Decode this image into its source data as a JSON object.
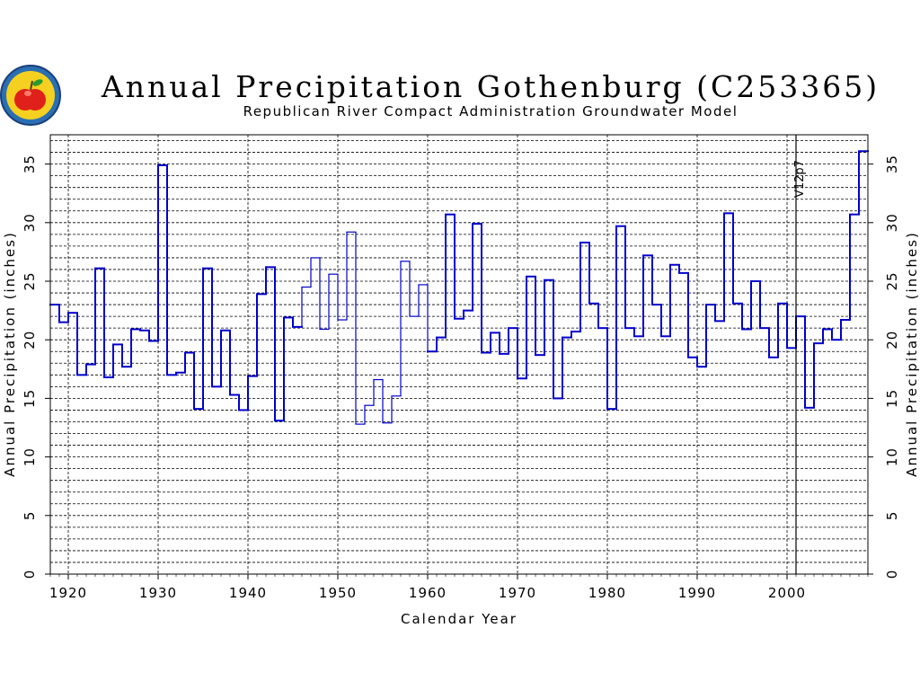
{
  "chart_data": {
    "type": "line",
    "step": true,
    "title": "Annual Precipitation Gothenburg (C253365)",
    "subtitle": "Republican River Compact Administration Groundwater Model",
    "xlabel": "Calendar Year",
    "ylabel": "Annual Precipitation (inches)",
    "ylabel_right": "Annual Precipitation (inches)",
    "xlim": [
      1918,
      2009
    ],
    "ylim": [
      0,
      37.5
    ],
    "x_ticks": [
      1920,
      1930,
      1940,
      1950,
      1960,
      1970,
      1980,
      1990,
      2000
    ],
    "y_ticks": [
      0,
      5,
      10,
      15,
      20,
      25,
      30,
      35
    ],
    "y_minor_step": 1,
    "grid": true,
    "line_color": "#0000cc",
    "annotation": {
      "text": "V12p7",
      "x": 2001
    },
    "x": [
      1918,
      1919,
      1920,
      1921,
      1922,
      1923,
      1924,
      1925,
      1926,
      1927,
      1928,
      1929,
      1930,
      1931,
      1932,
      1933,
      1934,
      1935,
      1936,
      1937,
      1938,
      1939,
      1940,
      1941,
      1942,
      1943,
      1944,
      1945,
      1946,
      1947,
      1948,
      1949,
      1950,
      1951,
      1952,
      1953,
      1954,
      1955,
      1956,
      1957,
      1958,
      1959,
      1960,
      1961,
      1962,
      1963,
      1964,
      1965,
      1966,
      1967,
      1968,
      1969,
      1970,
      1971,
      1972,
      1973,
      1974,
      1975,
      1976,
      1977,
      1978,
      1979,
      1980,
      1981,
      1982,
      1983,
      1984,
      1985,
      1986,
      1987,
      1988,
      1989,
      1990,
      1991,
      1992,
      1993,
      1994,
      1995,
      1996,
      1997,
      1998,
      1999,
      2000,
      2001,
      2002,
      2003,
      2004,
      2005,
      2006,
      2007,
      2008
    ],
    "values": [
      23.0,
      21.5,
      22.3,
      17.0,
      17.9,
      26.1,
      16.8,
      19.6,
      17.7,
      20.9,
      20.8,
      19.9,
      34.9,
      17.0,
      17.2,
      18.9,
      14.1,
      26.1,
      16.0,
      20.8,
      15.3,
      14.0,
      16.9,
      23.9,
      26.2,
      13.1,
      21.9,
      21.1,
      24.5,
      27.0,
      20.9,
      25.6,
      21.7,
      29.2,
      12.8,
      14.4,
      16.6,
      12.9,
      15.2,
      26.7,
      22.0,
      24.7,
      19.0,
      20.2,
      30.7,
      21.8,
      22.5,
      29.9,
      18.9,
      20.6,
      18.8,
      21.0,
      16.7,
      25.4,
      18.7,
      25.1,
      15.0,
      20.2,
      20.7,
      28.3,
      23.1,
      21.0,
      14.1,
      29.7,
      21.0,
      20.3,
      27.2,
      23.0,
      20.3,
      26.4,
      25.7,
      18.5,
      17.7,
      23.0,
      21.6,
      30.8,
      23.1,
      20.9,
      25.0,
      21.0,
      18.5,
      23.1,
      19.3,
      22.0,
      14.2,
      19.7,
      20.9,
      20.0,
      21.7,
      30.7,
      36.1
    ],
    "thin_ranges": [
      [
        1946,
        1960
      ]
    ]
  }
}
